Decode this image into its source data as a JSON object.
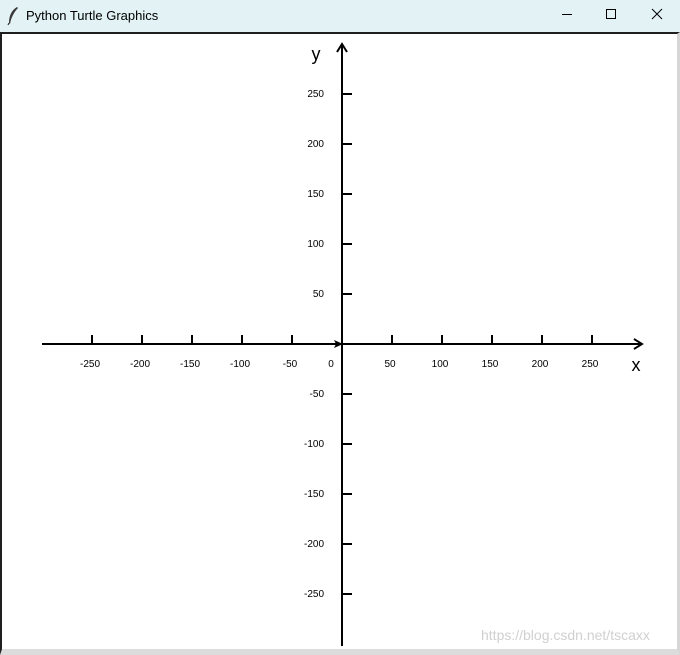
{
  "window": {
    "title": "Python Turtle Graphics",
    "icon": "feather-icon",
    "controls": [
      "minimize-icon",
      "maximize-icon",
      "close-icon"
    ]
  },
  "graph": {
    "x_label": "x",
    "y_label": "y",
    "origin_label": "0",
    "x_ticks": [
      -250,
      -200,
      -150,
      -100,
      -50,
      50,
      100,
      150,
      200,
      250
    ],
    "y_ticks": [
      250,
      200,
      150,
      100,
      50,
      -50,
      -100,
      -150,
      -200,
      -250
    ],
    "line_color": "#000000"
  },
  "watermark": "https://blog.csdn.net/tscaxx"
}
